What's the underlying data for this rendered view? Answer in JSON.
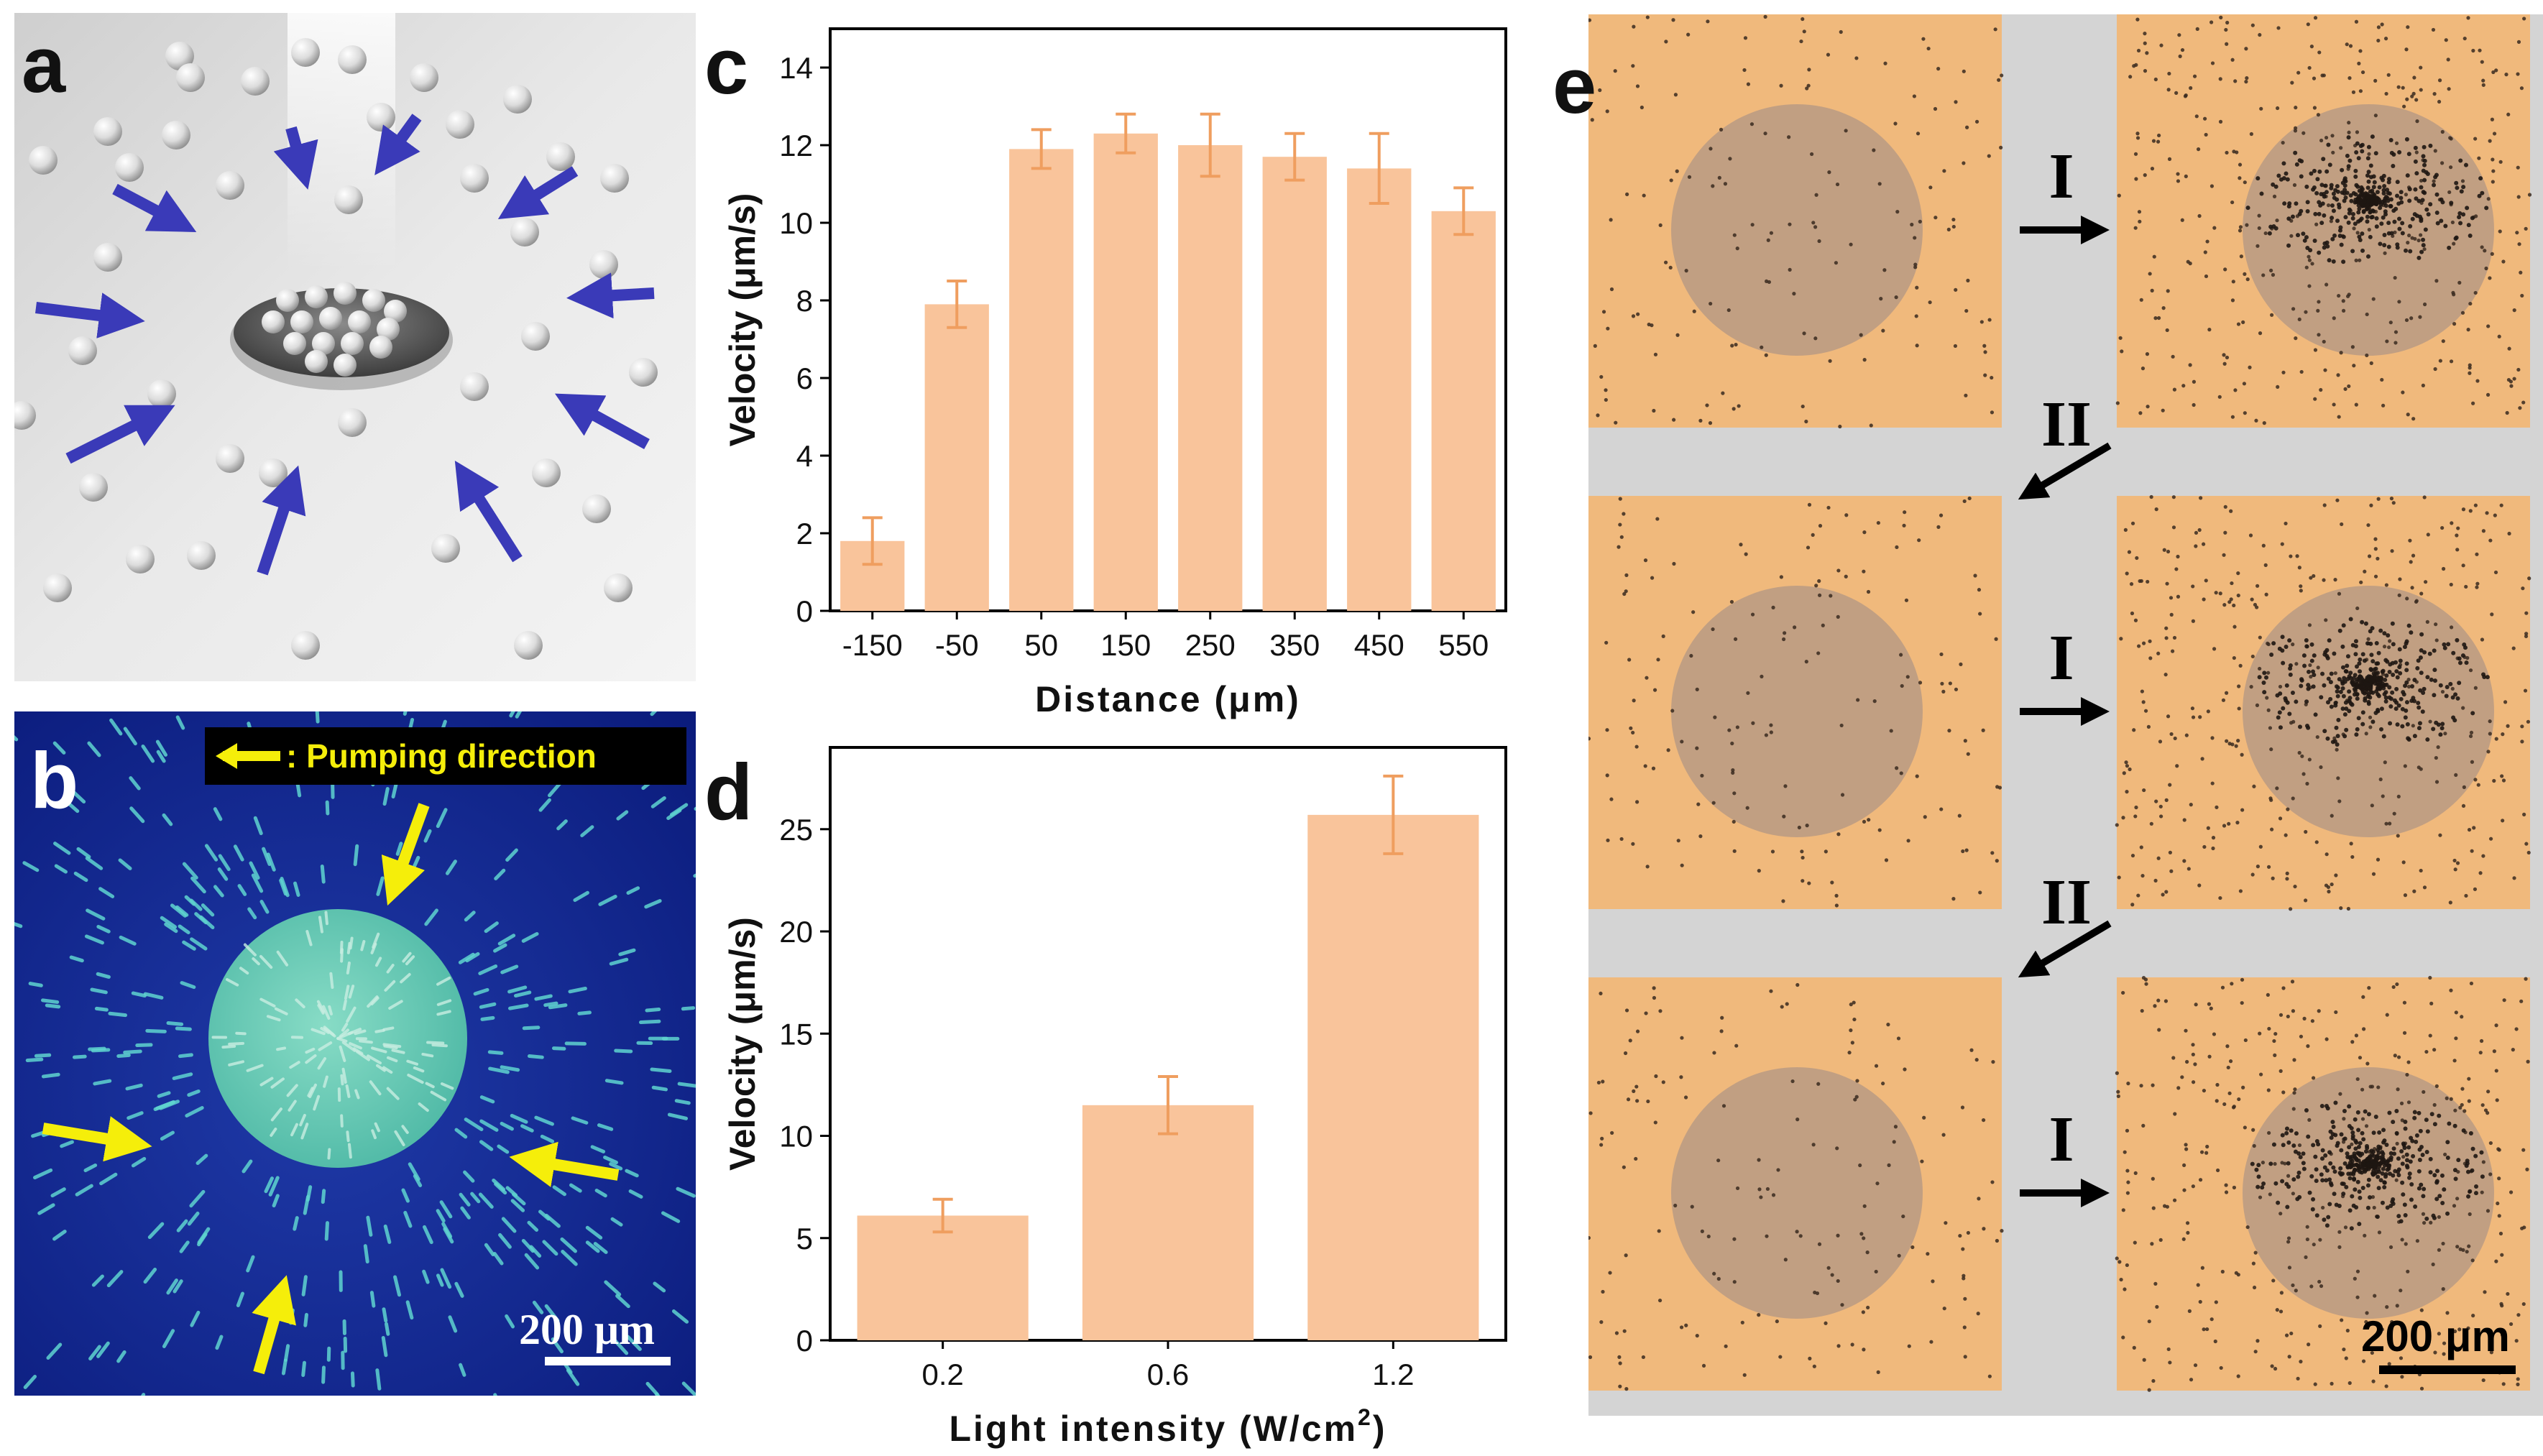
{
  "panel_labels": {
    "a": "a",
    "b": "b",
    "c": "c",
    "d": "d",
    "e": "e"
  },
  "panel_b": {
    "legend_text": ": Pumping direction",
    "scale_bar": "200 μm"
  },
  "panel_e": {
    "step_forward": "I",
    "step_return": "II",
    "scale_bar": "200 μm"
  },
  "colors": {
    "bar_fill": "#f9c49b",
    "bar_err": "#ef9e5f",
    "arrow_blue": "#3a3ab8",
    "arrow_yellow": "#f5ee0a",
    "panel_b_bg": "#10248a",
    "panel_b_disk": "#68c9b3",
    "panel_e_bg": "#f0b97c",
    "panel_e_spot": "#b89a84",
    "panel_e_gap": "#d4d4d4"
  },
  "chart_data": [
    {
      "id": "c",
      "type": "bar",
      "categories": [
        "-150",
        "-50",
        "50",
        "150",
        "250",
        "350",
        "450",
        "550"
      ],
      "values": [
        1.8,
        7.9,
        11.9,
        12.3,
        12.0,
        11.7,
        11.4,
        10.3
      ],
      "errors": [
        0.6,
        0.6,
        0.5,
        0.5,
        0.8,
        0.6,
        0.9,
        0.6
      ],
      "xlabel": "Distance (μm)",
      "ylabel": "Velocity (μm/s)",
      "ylim": [
        0,
        15
      ],
      "yticks": [
        "0",
        "2",
        "4",
        "6",
        "8",
        "10",
        "12",
        "14"
      ],
      "ytick_values": [
        0,
        2,
        4,
        6,
        8,
        10,
        12,
        14
      ]
    },
    {
      "id": "d",
      "type": "bar",
      "categories": [
        "0.2",
        "0.6",
        "1.2"
      ],
      "values": [
        6.1,
        11.5,
        25.7
      ],
      "errors": [
        0.8,
        1.4,
        1.9
      ],
      "xlabel": "Light intensity (W/cm",
      "xlabel_sup": "2",
      "xlabel_end": ")",
      "ylabel": "Velocity (μm/s)",
      "ylim": [
        0,
        29
      ],
      "yticks": [
        "0",
        "5",
        "10",
        "15",
        "20",
        "25"
      ],
      "ytick_values": [
        0,
        5,
        10,
        15,
        20,
        25
      ]
    }
  ]
}
